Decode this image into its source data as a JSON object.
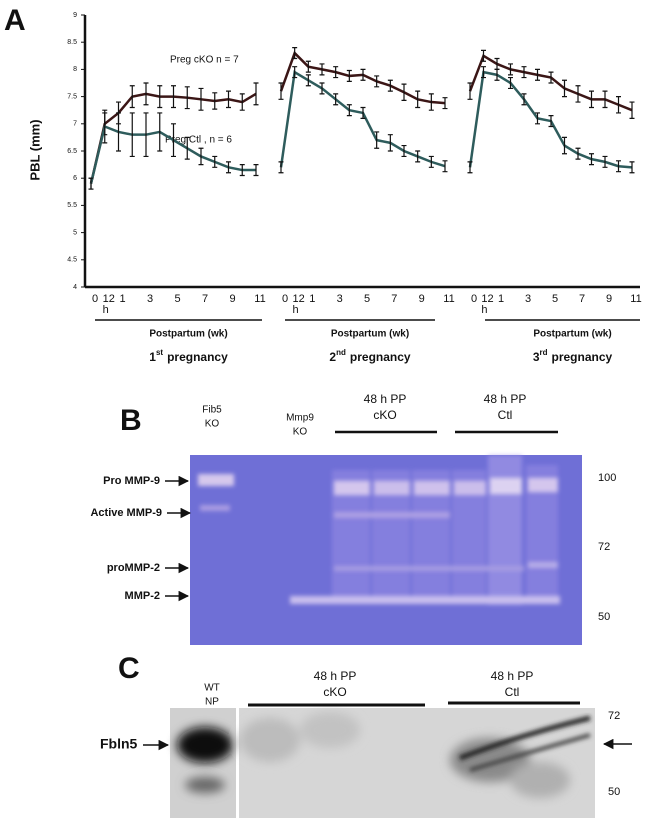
{
  "panel_a": {
    "letter": "A"
  },
  "chart_data": [
    {
      "type": "line",
      "ylabel": "PBL (mm)",
      "ylim": [
        4,
        9
      ],
      "yticks": [
        4,
        4.5,
        5,
        5.5,
        6,
        6.5,
        7,
        7.5,
        8,
        8.5,
        9
      ],
      "annotations": [
        "Preg cKO  n = 7",
        "Preg Ctl , n = 6"
      ],
      "categories": [
        "0",
        "12 h",
        "1",
        null,
        "3",
        null,
        "5",
        null,
        "7",
        null,
        "9",
        null,
        "11"
      ],
      "xlabel": "Postpartum (wk)",
      "ordinal": "1",
      "ordinal_suffix": "st",
      "caption": "pregnancy",
      "series": [
        {
          "name": "Preg cKO",
          "color": "#3b1616",
          "values": [
            5.9,
            7.0,
            7.2,
            7.5,
            7.55,
            7.5,
            7.5,
            7.48,
            7.45,
            7.42,
            7.45,
            7.4,
            7.55
          ],
          "errors": [
            0.1,
            0.2,
            0.2,
            0.2,
            0.2,
            0.2,
            0.2,
            0.2,
            0.2,
            0.15,
            0.15,
            0.15,
            0.2
          ]
        },
        {
          "name": "Preg Ctl",
          "color": "#2e5c5c",
          "values": [
            5.9,
            6.95,
            6.85,
            6.8,
            6.8,
            6.85,
            6.7,
            6.55,
            6.4,
            6.3,
            6.2,
            6.15,
            6.15
          ],
          "errors": [
            0.1,
            0.3,
            0.35,
            0.4,
            0.4,
            0.35,
            0.3,
            0.2,
            0.15,
            0.1,
            0.1,
            0.1,
            0.1
          ]
        }
      ]
    },
    {
      "type": "line",
      "ylim": [
        4,
        9
      ],
      "categories": [
        "0",
        "12 h",
        "1",
        null,
        "3",
        null,
        "5",
        null,
        "7",
        null,
        "9",
        null,
        "11"
      ],
      "xlabel": "Postpartum (wk)",
      "ordinal": "2",
      "ordinal_suffix": "nd",
      "caption": "pregnancy",
      "series": [
        {
          "name": "Preg cKO",
          "color": "#3b1616",
          "values": [
            7.6,
            8.3,
            8.05,
            8.0,
            7.95,
            7.88,
            7.9,
            7.78,
            7.7,
            7.58,
            7.45,
            7.4,
            7.38
          ],
          "errors": [
            0.15,
            0.1,
            0.1,
            0.1,
            0.1,
            0.1,
            0.1,
            0.1,
            0.1,
            0.15,
            0.15,
            0.15,
            0.1
          ]
        },
        {
          "name": "Preg Ctl",
          "color": "#2e5c5c",
          "values": [
            6.2,
            7.95,
            7.8,
            7.65,
            7.45,
            7.25,
            7.2,
            6.7,
            6.65,
            6.5,
            6.4,
            6.3,
            6.22
          ],
          "errors": [
            0.1,
            0.1,
            0.1,
            0.1,
            0.1,
            0.1,
            0.1,
            0.15,
            0.15,
            0.1,
            0.1,
            0.1,
            0.1
          ]
        }
      ]
    },
    {
      "type": "line",
      "ylim": [
        4,
        9
      ],
      "categories": [
        "0",
        "12 h",
        "1",
        null,
        "3",
        null,
        "5",
        null,
        "7",
        null,
        "9",
        null,
        "11"
      ],
      "xlabel": "Postpartum (wk)",
      "ordinal": "3",
      "ordinal_suffix": "rd",
      "caption": "pregnancy",
      "series": [
        {
          "name": "Preg cKO",
          "color": "#3b1616",
          "values": [
            7.6,
            8.25,
            8.1,
            8.0,
            7.95,
            7.9,
            7.85,
            7.65,
            7.55,
            7.45,
            7.45,
            7.35,
            7.25
          ],
          "errors": [
            0.15,
            0.1,
            0.1,
            0.1,
            0.1,
            0.1,
            0.1,
            0.15,
            0.15,
            0.15,
            0.15,
            0.15,
            0.15
          ]
        },
        {
          "name": "Preg Ctl",
          "color": "#2e5c5c",
          "values": [
            6.2,
            7.95,
            7.9,
            7.75,
            7.45,
            7.1,
            7.05,
            6.6,
            6.45,
            6.35,
            6.3,
            6.22,
            6.2
          ],
          "errors": [
            0.1,
            0.1,
            0.1,
            0.1,
            0.1,
            0.1,
            0.1,
            0.15,
            0.1,
            0.1,
            0.1,
            0.1,
            0.1
          ]
        }
      ]
    }
  ],
  "panel_b": {
    "letter": "B",
    "lane_labels": [
      [
        "Fib5",
        "KO"
      ],
      [
        "Mmp9",
        "KO"
      ]
    ],
    "groups": [
      [
        "48 h PP",
        "cKO"
      ],
      [
        "48 h PP",
        "Ctl"
      ]
    ],
    "bands": [
      "Pro MMP-9",
      "Active MMP-9",
      "proMMP-2",
      "MMP-2"
    ],
    "markers": [
      "100",
      "72",
      "50"
    ]
  },
  "panel_c": {
    "letter": "C",
    "lane_labels": [
      [
        "WT",
        "NP"
      ]
    ],
    "groups": [
      [
        "48 h PP",
        "cKO"
      ],
      [
        "48 h PP",
        "Ctl"
      ]
    ],
    "band": "Fbln5",
    "markers": [
      "72",
      "50"
    ]
  }
}
